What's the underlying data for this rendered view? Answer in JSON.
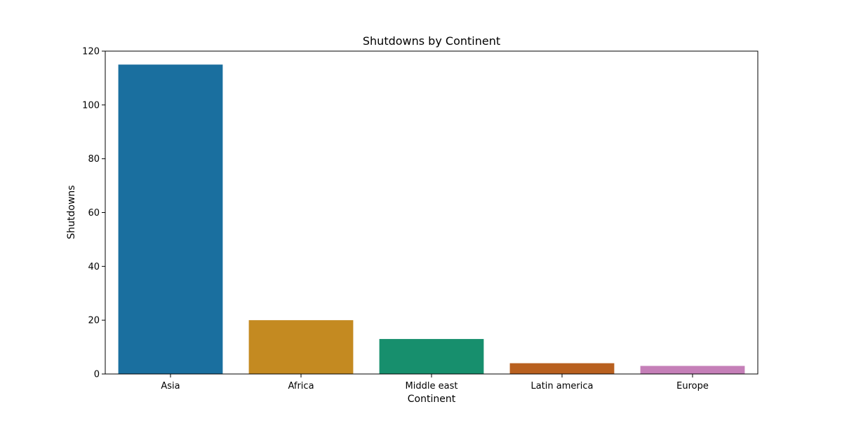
{
  "chart_data": {
    "type": "bar",
    "title": "Shutdowns by Continent",
    "xlabel": "Continent",
    "ylabel": "Shutdowns",
    "categories": [
      "Asia",
      "Africa",
      "Middle east",
      "Latin america",
      "Europe"
    ],
    "values": [
      115,
      20,
      13,
      4,
      3
    ],
    "colors": [
      "#1a6f9f",
      "#c48a21",
      "#178f6d",
      "#b8601f",
      "#c57fb8"
    ],
    "ylim": [
      0,
      120
    ],
    "yticks": [
      0,
      20,
      40,
      60,
      80,
      100,
      120
    ],
    "grid": false,
    "legend": "none"
  }
}
